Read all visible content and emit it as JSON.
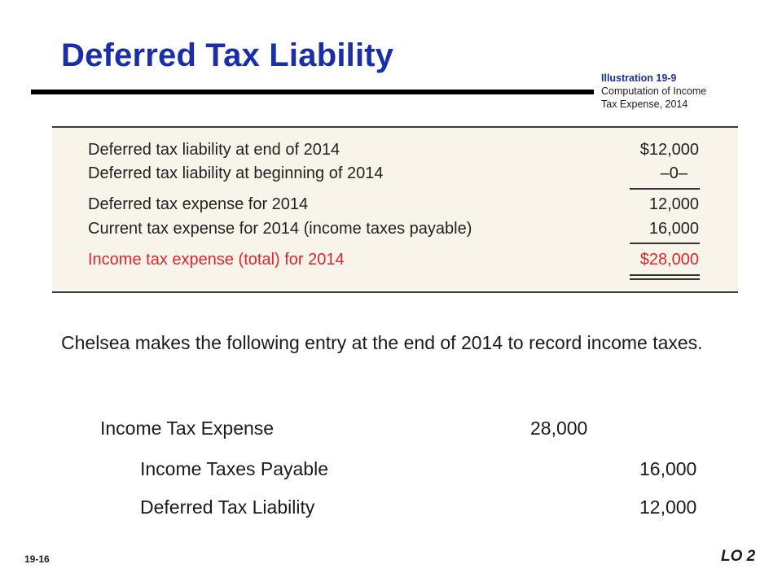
{
  "slide": {
    "title": "Deferred Tax Liability",
    "page_number": "19-16",
    "lo_label": "LO 2"
  },
  "illustration": {
    "heading": "Illustration 19-9",
    "caption_line1": "Computation of Income",
    "caption_line2": "Tax Expense, 2014"
  },
  "computation": {
    "rows": [
      {
        "label": "Deferred tax liability at end of 2014",
        "amount": "$12,000"
      },
      {
        "label": "Deferred tax liability at beginning of 2014",
        "amount": "–0–"
      },
      {
        "label": "Deferred tax expense for 2014",
        "amount": "12,000"
      },
      {
        "label": "Current tax expense for 2014 (income taxes payable)",
        "amount": "16,000"
      },
      {
        "label": "Income tax expense (total) for 2014",
        "amount": "$28,000"
      }
    ],
    "highlight_color": "#e0242e"
  },
  "narrative": {
    "text": "Chelsea makes the following entry at the end of 2014 to record income taxes."
  },
  "journal_entry": {
    "debit_account": "Income Tax Expense",
    "debit_amount": "28,000",
    "credits": [
      {
        "account": "Income Taxes Payable",
        "amount": "16,000"
      },
      {
        "account": "Deferred Tax Liability",
        "amount": "12,000"
      }
    ]
  }
}
